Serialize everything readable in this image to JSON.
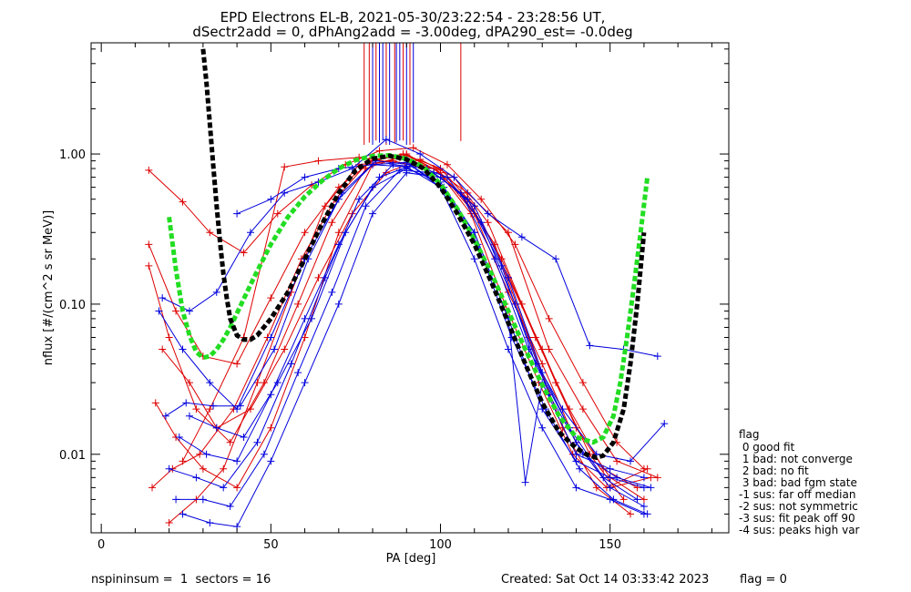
{
  "figure": {
    "title_line1": "EPD Electrons EL-B, 2021-05-30/23:22:54 - 23:28:56 UT,",
    "title_line2": "dSectr2add = 0, dPhAng2add = -3.00deg, dPA290_est=  -0.0deg",
    "footer_left": "nspininsum =  1  sectors = 16",
    "footer_created": "Created: Sat Oct 14 03:33:42 2023",
    "footer_flag": "flag = 0"
  },
  "legend": {
    "title": "flag",
    "entries": [
      " 0 good fit",
      " 1 bad: not converge",
      " 2 bad: no fit",
      " 3 bad: bad fgm state",
      "-1 sus: far off median",
      "-2 sus: not symmetric",
      "-3 sus: fit peak off 90",
      "-4 sus: peaks high var"
    ]
  },
  "colors": {
    "axis": "#000000",
    "series_a": "#dd0000",
    "series_b": "#0000dd",
    "fit_green": "#22dd22",
    "fit_black": "#000000"
  },
  "chart_data": {
    "type": "line",
    "xlabel": "PA [deg]",
    "ylabel": "nflux [#/(cm^2 s sr MeV)]",
    "xlim": [
      -3,
      185
    ],
    "ylim": [
      0.003,
      5.5
    ],
    "yscale": "log",
    "xticks": [
      0,
      50,
      100,
      150
    ],
    "xtick_labels": [
      "0",
      "50",
      "100",
      "150"
    ],
    "yticks": [
      0.01,
      0.1,
      1.0
    ],
    "ytick_labels": [
      "0.01",
      "0.10",
      "1.00"
    ],
    "grid": false,
    "legend_placement": "right, outside plot",
    "series": [
      {
        "color": "red",
        "x": [
          14,
          24,
          32,
          42,
          52,
          62,
          72,
          82,
          92,
          102,
          112,
          122,
          132,
          142,
          152,
          160
        ],
        "y": [
          0.78,
          0.48,
          0.3,
          0.22,
          0.4,
          0.62,
          0.85,
          1.05,
          1.1,
          0.85,
          0.5,
          0.25,
          0.08,
          0.03,
          0.012,
          0.008
        ]
      },
      {
        "color": "red",
        "x": [
          14,
          22,
          30,
          40,
          50,
          60,
          70,
          80,
          90,
          100,
          110,
          120,
          130,
          140,
          150,
          162
        ],
        "y": [
          0.25,
          0.09,
          0.045,
          0.04,
          0.11,
          0.3,
          0.6,
          0.9,
          1.0,
          0.75,
          0.4,
          0.12,
          0.04,
          0.012,
          0.006,
          0.007
        ]
      },
      {
        "color": "red",
        "x": [
          14,
          20,
          28,
          38,
          48,
          58,
          68,
          78,
          88,
          98,
          108,
          118,
          128,
          138,
          148,
          158
        ],
        "y": [
          0.18,
          0.06,
          0.02,
          0.012,
          0.03,
          0.1,
          0.35,
          0.8,
          0.95,
          0.8,
          0.5,
          0.2,
          0.06,
          0.02,
          0.008,
          0.006
        ]
      },
      {
        "color": "red",
        "x": [
          16,
          22,
          30,
          40,
          50,
          60,
          70,
          80,
          90,
          100,
          110,
          120,
          130,
          140,
          150,
          160
        ],
        "y": [
          0.022,
          0.013,
          0.008,
          0.006,
          0.015,
          0.06,
          0.3,
          0.85,
          0.98,
          0.8,
          0.45,
          0.15,
          0.05,
          0.015,
          0.007,
          0.005
        ]
      },
      {
        "color": "red",
        "x": [
          15,
          21,
          29,
          39,
          49,
          59,
          69,
          79,
          89,
          99,
          109,
          119,
          129,
          139,
          149,
          161
        ],
        "y": [
          0.006,
          0.008,
          0.01,
          0.02,
          0.06,
          0.2,
          0.5,
          0.9,
          1.0,
          0.78,
          0.4,
          0.1,
          0.03,
          0.01,
          0.006,
          0.008
        ]
      },
      {
        "color": "red",
        "x": [
          18,
          26,
          34,
          44,
          54,
          64,
          74,
          84,
          94,
          104,
          114,
          124,
          134,
          144,
          154
        ],
        "y": [
          0.05,
          0.03,
          0.015,
          0.02,
          0.05,
          0.15,
          0.4,
          0.75,
          0.92,
          0.7,
          0.35,
          0.1,
          0.03,
          0.01,
          0.005
        ]
      },
      {
        "color": "red",
        "x": [
          20,
          28,
          36,
          46,
          56,
          66,
          76,
          86,
          96,
          106,
          116,
          126,
          136,
          146,
          156
        ],
        "y": [
          0.0035,
          0.005,
          0.008,
          0.03,
          0.12,
          0.45,
          0.85,
          0.9,
          0.8,
          0.55,
          0.25,
          0.06,
          0.015,
          0.006,
          0.004
        ]
      },
      {
        "color": "red",
        "x": [
          24,
          32,
          42,
          54,
          64,
          76,
          86,
          98,
          108,
          120,
          132,
          142,
          152,
          164
        ],
        "y": [
          0.009,
          0.02,
          0.06,
          0.82,
          0.9,
          0.95,
          0.88,
          0.8,
          0.55,
          0.3,
          0.05,
          0.02,
          0.009,
          0.007
        ]
      },
      {
        "color": "blue",
        "x": [
          18,
          26,
          34,
          44,
          54,
          64,
          74,
          84,
          94,
          104,
          114,
          124,
          134,
          144,
          154,
          164
        ],
        "y": [
          0.11,
          0.09,
          0.12,
          0.3,
          0.55,
          0.65,
          0.8,
          1.25,
          1.0,
          0.7,
          0.4,
          0.28,
          0.2,
          0.053,
          0.05,
          0.045
        ]
      },
      {
        "color": "blue",
        "x": [
          17,
          24,
          32,
          40,
          50,
          60,
          70,
          80,
          90,
          100,
          110,
          120,
          130,
          140,
          150,
          160
        ],
        "y": [
          0.09,
          0.05,
          0.03,
          0.02,
          0.06,
          0.2,
          0.5,
          0.85,
          0.88,
          0.6,
          0.2,
          0.05,
          0.015,
          0.006,
          0.005,
          0.004
        ]
      },
      {
        "color": "blue",
        "x": [
          19,
          25,
          33,
          41,
          51,
          61,
          71,
          81,
          91,
          101,
          111,
          121,
          131,
          141,
          151,
          161
        ],
        "y": [
          0.018,
          0.022,
          0.021,
          0.021,
          0.05,
          0.2,
          0.55,
          0.9,
          0.85,
          0.6,
          0.25,
          0.06,
          0.02,
          0.008,
          0.005,
          0.004
        ]
      },
      {
        "color": "blue",
        "x": [
          20,
          28,
          36,
          46,
          56,
          66,
          76,
          86,
          96,
          106,
          116,
          126,
          136,
          146,
          156,
          166
        ],
        "y": [
          0.008,
          0.007,
          0.006,
          0.012,
          0.04,
          0.15,
          0.5,
          0.85,
          0.8,
          0.55,
          0.2,
          0.05,
          0.02,
          0.01,
          0.009,
          0.016
        ]
      },
      {
        "color": "blue",
        "x": [
          22,
          30,
          38,
          48,
          58,
          68,
          78,
          88,
          98,
          108,
          118,
          128,
          138,
          148,
          158
        ],
        "y": [
          0.005,
          0.005,
          0.0045,
          0.01,
          0.035,
          0.12,
          0.45,
          0.78,
          0.75,
          0.5,
          0.18,
          0.04,
          0.015,
          0.007,
          0.005
        ]
      },
      {
        "color": "blue",
        "x": [
          24,
          32,
          40,
          50,
          60,
          70,
          80,
          90,
          100,
          110,
          120,
          130,
          140,
          150,
          160
        ],
        "y": [
          0.004,
          0.0035,
          0.0033,
          0.009,
          0.03,
          0.1,
          0.4,
          0.75,
          0.7,
          0.45,
          0.15,
          0.035,
          0.012,
          0.006,
          0.0045
        ]
      },
      {
        "color": "blue",
        "x": [
          26,
          34,
          42,
          52,
          62,
          72,
          82,
          92,
          102,
          112,
          122,
          132,
          142,
          152,
          162
        ],
        "y": [
          0.018,
          0.015,
          0.013,
          0.03,
          0.08,
          0.3,
          0.7,
          0.85,
          0.7,
          0.35,
          0.1,
          0.025,
          0.01,
          0.007,
          0.006
        ]
      },
      {
        "color": "blue",
        "x": [
          23,
          31,
          40,
          50,
          60,
          70,
          80,
          90,
          100,
          110,
          120,
          130,
          140,
          150,
          160
        ],
        "y": [
          0.013,
          0.01,
          0.009,
          0.025,
          0.08,
          0.25,
          0.6,
          0.8,
          0.65,
          0.3,
          0.08,
          0.02,
          0.009,
          0.007,
          0.006
        ]
      },
      {
        "color": "blue",
        "x": [
          40,
          50,
          60,
          70,
          80,
          90,
          100,
          110,
          120,
          125,
          130,
          140,
          150,
          160
        ],
        "y": [
          0.4,
          0.5,
          0.7,
          0.8,
          0.85,
          0.82,
          0.6,
          0.3,
          0.08,
          0.0065,
          0.03,
          0.01,
          0.008,
          0.007
        ]
      }
    ],
    "fits": [
      {
        "color": "green",
        "style": "dashed",
        "x": [
          20,
          22,
          24,
          26,
          28,
          30,
          32,
          34,
          36,
          38,
          40,
          45,
          50,
          55,
          60,
          65,
          70,
          75,
          80,
          85,
          90,
          95,
          100,
          105,
          110,
          115,
          120,
          125,
          130,
          135,
          140,
          145,
          148,
          151,
          153,
          155,
          157,
          159,
          161
        ],
        "y": [
          0.38,
          0.17,
          0.09,
          0.062,
          0.048,
          0.044,
          0.045,
          0.05,
          0.058,
          0.07,
          0.087,
          0.15,
          0.25,
          0.38,
          0.52,
          0.66,
          0.8,
          0.91,
          0.97,
          0.98,
          0.93,
          0.82,
          0.63,
          0.43,
          0.27,
          0.16,
          0.09,
          0.05,
          0.029,
          0.018,
          0.013,
          0.012,
          0.013,
          0.018,
          0.03,
          0.06,
          0.13,
          0.3,
          0.7
        ]
      },
      {
        "color": "black",
        "style": "dashed",
        "x": [
          30,
          31,
          32,
          33,
          34,
          35,
          36,
          37,
          38,
          40,
          42,
          44,
          46,
          50,
          55,
          60,
          65,
          70,
          75,
          80,
          85,
          90,
          95,
          100,
          105,
          110,
          115,
          120,
          125,
          130,
          135,
          140,
          143,
          146,
          148,
          151,
          154,
          156,
          158,
          160
        ],
        "y": [
          5.0,
          3.0,
          1.6,
          0.85,
          0.45,
          0.26,
          0.16,
          0.11,
          0.08,
          0.062,
          0.058,
          0.058,
          0.062,
          0.08,
          0.12,
          0.2,
          0.34,
          0.55,
          0.78,
          0.93,
          0.97,
          0.92,
          0.8,
          0.6,
          0.4,
          0.25,
          0.14,
          0.075,
          0.04,
          0.022,
          0.014,
          0.011,
          0.01,
          0.0095,
          0.0098,
          0.012,
          0.02,
          0.04,
          0.1,
          0.3
        ]
      }
    ],
    "vertical_markers": [
      {
        "color": "red",
        "x": [
          77.5,
          79,
          81,
          84,
          86.5,
          89,
          91,
          106
        ]
      },
      {
        "color": "blue",
        "x": [
          80,
          82,
          83,
          85,
          87,
          88,
          90,
          92
        ]
      }
    ]
  }
}
